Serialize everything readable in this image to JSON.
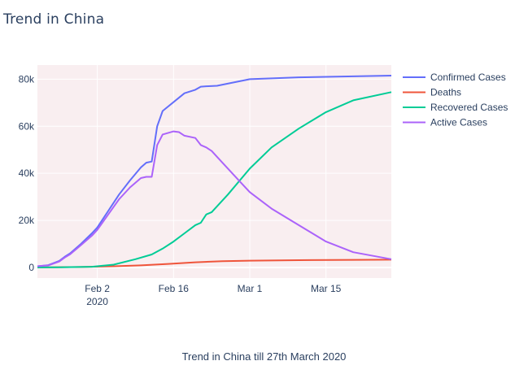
{
  "page": {
    "title": "Trend in China",
    "caption": "Trend in China till 27th March 2020"
  },
  "chart_data": {
    "type": "line",
    "title": "Trend in China",
    "xlabel": "",
    "ylabel": "",
    "x_start": "2020-01-22",
    "x_end": "2020-03-27",
    "x_ticks": [
      {
        "date": "2020-02-02",
        "label": "Feb 2",
        "sublabel": "2020"
      },
      {
        "date": "2020-02-16",
        "label": "Feb 16",
        "sublabel": ""
      },
      {
        "date": "2020-03-01",
        "label": "Mar 1",
        "sublabel": ""
      },
      {
        "date": "2020-03-15",
        "label": "Mar 15",
        "sublabel": ""
      }
    ],
    "ylim": [
      -4500,
      86000
    ],
    "y_ticks": [
      0,
      20000,
      40000,
      60000,
      80000
    ],
    "y_tick_labels": [
      "0",
      "20k",
      "40k",
      "60k",
      "80k"
    ],
    "grid": true,
    "plot_bg": "#f9eef0",
    "legend_position": "top-right",
    "series": [
      {
        "name": "Confirmed Cases",
        "color": "#636efa",
        "x": [
          "2020-01-22",
          "2020-01-24",
          "2020-01-26",
          "2020-01-27",
          "2020-01-28",
          "2020-01-30",
          "2020-02-01",
          "2020-02-02",
          "2020-02-04",
          "2020-02-06",
          "2020-02-08",
          "2020-02-10",
          "2020-02-11",
          "2020-02-12",
          "2020-02-13",
          "2020-02-14",
          "2020-02-18",
          "2020-02-20",
          "2020-02-21",
          "2020-02-22",
          "2020-02-24",
          "2020-03-01",
          "2020-03-10",
          "2020-03-20",
          "2020-03-27"
        ],
        "y": [
          500,
          1000,
          2800,
          4500,
          6000,
          10000,
          14500,
          17000,
          24000,
          31000,
          37000,
          42500,
          44500,
          45000,
          60000,
          66500,
          74000,
          75500,
          76800,
          77000,
          77200,
          80000,
          80800,
          81200,
          81500
        ]
      },
      {
        "name": "Deaths",
        "color": "#ef553b",
        "x": [
          "2020-01-22",
          "2020-01-30",
          "2020-02-05",
          "2020-02-10",
          "2020-02-15",
          "2020-02-20",
          "2020-02-25",
          "2020-03-01",
          "2020-03-10",
          "2020-03-20",
          "2020-03-27"
        ],
        "y": [
          20,
          200,
          500,
          900,
          1500,
          2200,
          2700,
          2900,
          3100,
          3250,
          3300
        ]
      },
      {
        "name": "Recovered Cases",
        "color": "#00cc96",
        "x": [
          "2020-01-22",
          "2020-01-26",
          "2020-02-01",
          "2020-02-05",
          "2020-02-09",
          "2020-02-12",
          "2020-02-14",
          "2020-02-16",
          "2020-02-18",
          "2020-02-20",
          "2020-02-21",
          "2020-02-22",
          "2020-02-23",
          "2020-02-26",
          "2020-03-01",
          "2020-03-05",
          "2020-03-10",
          "2020-03-15",
          "2020-03-20",
          "2020-03-27"
        ],
        "y": [
          30,
          60,
          300,
          1200,
          3500,
          5500,
          8000,
          11000,
          14500,
          18000,
          19000,
          22500,
          23500,
          31000,
          42000,
          51000,
          59000,
          66000,
          71000,
          74500
        ]
      },
      {
        "name": "Active Cases",
        "color": "#ab63fa",
        "x": [
          "2020-01-22",
          "2020-01-24",
          "2020-01-26",
          "2020-01-27",
          "2020-01-28",
          "2020-01-30",
          "2020-02-01",
          "2020-02-02",
          "2020-02-04",
          "2020-02-06",
          "2020-02-08",
          "2020-02-10",
          "2020-02-11",
          "2020-02-12",
          "2020-02-13",
          "2020-02-14",
          "2020-02-16",
          "2020-02-17",
          "2020-02-18",
          "2020-02-20",
          "2020-02-21",
          "2020-02-22",
          "2020-02-23",
          "2020-02-24",
          "2020-02-26",
          "2020-02-28",
          "2020-03-01",
          "2020-03-05",
          "2020-03-10",
          "2020-03-15",
          "2020-03-20",
          "2020-03-27"
        ],
        "y": [
          500,
          900,
          2500,
          4200,
          5600,
          9500,
          13500,
          16000,
          22500,
          29000,
          34000,
          38000,
          38500,
          38500,
          52000,
          56500,
          57800,
          57500,
          56000,
          55000,
          52000,
          51000,
          49500,
          47000,
          42000,
          37000,
          32000,
          25000,
          18000,
          11000,
          6500,
          3500
        ]
      }
    ]
  }
}
